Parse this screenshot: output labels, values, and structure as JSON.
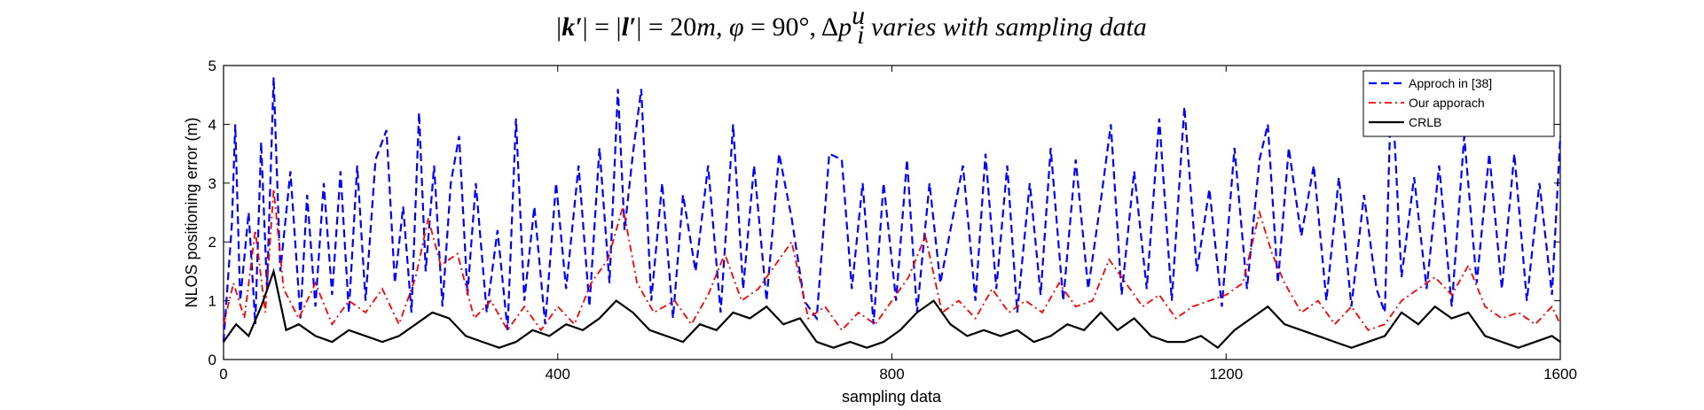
{
  "chart_data": {
    "type": "line",
    "title_parts": {
      "p1": "|",
      "p2": "k′",
      "p3": "| = |",
      "p4": "l′",
      "p5": "| = 20",
      "p6": "m",
      "p7": ", ",
      "p8": "φ",
      "p9": " = 90°, Δ",
      "p10": "p",
      "p11": "u",
      "p12": "i",
      "p13": " varies with sampling data"
    },
    "xlabel": "sampling data",
    "ylabel": "NLOS positioning error (m)",
    "xlim": [
      0,
      1600
    ],
    "ylim": [
      0,
      5
    ],
    "xticks": [
      0,
      400,
      800,
      1200,
      1600
    ],
    "yticks": [
      0,
      1,
      2,
      3,
      4,
      5
    ],
    "legend_position": "top-right",
    "grid": false,
    "series": [
      {
        "name": "Approch in [38]",
        "color": "#0000ff",
        "style": "dashed",
        "x": [
          0,
          10,
          14,
          20,
          30,
          38,
          45,
          52,
          60,
          68,
          80,
          92,
          100,
          110,
          120,
          130,
          140,
          150,
          160,
          170,
          182,
          195,
          205,
          215,
          225,
          234,
          242,
          252,
          262,
          272,
          282,
          292,
          302,
          315,
          328,
          340,
          350,
          360,
          372,
          385,
          398,
          410,
          425,
          438,
          450,
          462,
          472,
          480,
          490,
          500,
          512,
          525,
          538,
          550,
          565,
          580,
          595,
          610,
          622,
          635,
          650,
          665,
          680,
          695,
          710,
          725,
          740,
          752,
          765,
          778,
          790,
          805,
          818,
          830,
          845,
          858,
          870,
          885,
          900,
          912,
          925,
          938,
          950,
          965,
          978,
          990,
          1005,
          1020,
          1035,
          1050,
          1062,
          1075,
          1090,
          1105,
          1120,
          1135,
          1150,
          1165,
          1180,
          1195,
          1210,
          1225,
          1240,
          1250,
          1262,
          1275,
          1290,
          1305,
          1320,
          1335,
          1350,
          1365,
          1380,
          1390,
          1398,
          1410,
          1425,
          1440,
          1455,
          1470,
          1485,
          1500,
          1515,
          1530,
          1545,
          1560,
          1575,
          1590,
          1600
        ],
        "y": [
          0.3,
          2.3,
          4.0,
          1.0,
          2.5,
          0.6,
          3.7,
          1.2,
          4.8,
          1.5,
          3.2,
          0.7,
          2.8,
          0.9,
          3.0,
          1.1,
          3.2,
          0.8,
          3.3,
          1.0,
          3.4,
          3.9,
          1.3,
          2.6,
          0.8,
          4.2,
          1.5,
          3.3,
          0.9,
          3.0,
          3.8,
          1.1,
          3.0,
          0.8,
          2.2,
          0.5,
          4.1,
          1.0,
          2.6,
          0.6,
          3.0,
          1.2,
          3.3,
          0.9,
          3.6,
          1.3,
          4.6,
          2.2,
          3.5,
          4.6,
          1.0,
          3.0,
          0.7,
          2.8,
          1.5,
          3.3,
          0.8,
          4.0,
          1.2,
          3.3,
          1.0,
          3.5,
          2.4,
          1.0,
          0.7,
          3.5,
          3.4,
          1.2,
          3.0,
          0.6,
          3.0,
          1.0,
          3.4,
          0.8,
          3.0,
          1.3,
          2.2,
          3.3,
          1.0,
          3.5,
          1.2,
          3.3,
          0.8,
          3.0,
          1.1,
          3.6,
          1.0,
          3.4,
          1.2,
          2.7,
          4.0,
          1.1,
          3.2,
          1.2,
          4.1,
          1.0,
          4.3,
          1.5,
          2.9,
          0.9,
          3.6,
          1.2,
          3.4,
          4.0,
          1.3,
          3.6,
          2.1,
          3.3,
          1.0,
          3.1,
          0.9,
          2.8,
          1.2,
          0.8,
          4.8,
          1.4,
          3.1,
          1.2,
          3.3,
          0.9,
          3.8,
          1.3,
          3.5,
          1.2,
          3.5,
          1.0,
          3.0,
          1.1,
          3.8
        ],
        "values_are_approximate_envelope": true
      },
      {
        "name": "Our apporach",
        "color": "#ff0000",
        "style": "dashdot",
        "x": [
          0,
          12,
          25,
          38,
          50,
          60,
          72,
          90,
          110,
          130,
          150,
          170,
          190,
          210,
          230,
          245,
          260,
          280,
          300,
          320,
          340,
          360,
          380,
          400,
          420,
          440,
          460,
          478,
          495,
          515,
          540,
          560,
          580,
          600,
          620,
          640,
          660,
          680,
          700,
          720,
          740,
          760,
          780,
          800,
          820,
          840,
          860,
          880,
          900,
          920,
          940,
          960,
          980,
          1000,
          1020,
          1040,
          1060,
          1080,
          1100,
          1120,
          1140,
          1160,
          1180,
          1200,
          1220,
          1240,
          1255,
          1270,
          1290,
          1310,
          1330,
          1350,
          1370,
          1390,
          1410,
          1430,
          1450,
          1470,
          1490,
          1510,
          1530,
          1550,
          1570,
          1590,
          1600
        ],
        "y": [
          0.6,
          1.3,
          0.7,
          2.2,
          0.8,
          2.9,
          1.2,
          0.7,
          1.3,
          0.6,
          1.0,
          0.8,
          1.2,
          0.6,
          1.4,
          2.4,
          1.6,
          1.8,
          0.7,
          1.0,
          0.5,
          0.9,
          0.5,
          0.9,
          0.6,
          1.3,
          1.7,
          2.6,
          1.3,
          0.8,
          1.0,
          0.6,
          1.1,
          1.8,
          1.0,
          1.2,
          1.6,
          2.0,
          0.7,
          0.9,
          0.5,
          0.8,
          0.6,
          1.0,
          1.4,
          2.1,
          0.8,
          1.0,
          0.7,
          1.2,
          0.8,
          1.0,
          0.8,
          1.3,
          0.9,
          1.0,
          1.7,
          1.3,
          0.9,
          1.1,
          0.7,
          0.9,
          1.0,
          1.1,
          1.3,
          2.5,
          1.8,
          1.3,
          0.8,
          1.0,
          0.6,
          0.9,
          0.5,
          0.6,
          1.0,
          1.2,
          1.4,
          1.1,
          1.6,
          0.9,
          0.7,
          0.8,
          0.6,
          0.9,
          0.6
        ],
        "values_are_approximate_envelope": true
      },
      {
        "name": "CRLB",
        "color": "#000000",
        "style": "solid",
        "x": [
          0,
          15,
          30,
          45,
          60,
          75,
          90,
          110,
          130,
          150,
          170,
          190,
          210,
          230,
          250,
          270,
          290,
          310,
          330,
          350,
          370,
          390,
          410,
          430,
          450,
          470,
          490,
          510,
          530,
          550,
          570,
          590,
          610,
          630,
          650,
          670,
          690,
          710,
          730,
          750,
          770,
          790,
          810,
          830,
          850,
          870,
          890,
          910,
          930,
          950,
          970,
          990,
          1010,
          1030,
          1050,
          1070,
          1090,
          1110,
          1130,
          1150,
          1170,
          1190,
          1210,
          1230,
          1250,
          1270,
          1290,
          1310,
          1330,
          1350,
          1370,
          1390,
          1410,
          1430,
          1450,
          1470,
          1490,
          1510,
          1530,
          1550,
          1570,
          1590,
          1600
        ],
        "y": [
          0.3,
          0.6,
          0.4,
          0.9,
          1.5,
          0.5,
          0.6,
          0.4,
          0.3,
          0.5,
          0.4,
          0.3,
          0.4,
          0.6,
          0.8,
          0.7,
          0.4,
          0.3,
          0.2,
          0.3,
          0.5,
          0.4,
          0.6,
          0.5,
          0.7,
          1.0,
          0.8,
          0.5,
          0.4,
          0.3,
          0.6,
          0.5,
          0.8,
          0.7,
          0.9,
          0.6,
          0.7,
          0.3,
          0.2,
          0.3,
          0.2,
          0.3,
          0.5,
          0.8,
          1.0,
          0.6,
          0.4,
          0.5,
          0.4,
          0.5,
          0.3,
          0.4,
          0.6,
          0.5,
          0.8,
          0.5,
          0.7,
          0.4,
          0.3,
          0.3,
          0.4,
          0.2,
          0.5,
          0.7,
          0.9,
          0.6,
          0.5,
          0.4,
          0.3,
          0.2,
          0.3,
          0.4,
          0.8,
          0.6,
          0.9,
          0.7,
          0.8,
          0.4,
          0.3,
          0.2,
          0.3,
          0.4,
          0.3
        ],
        "values_are_approximate_envelope": true
      }
    ]
  }
}
